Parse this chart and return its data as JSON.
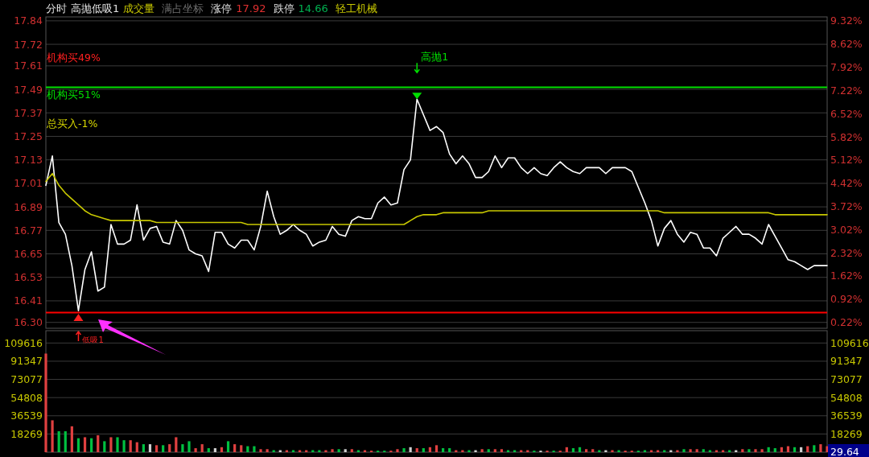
{
  "chart_data": [
    {
      "type": "line",
      "categories": [
        null,
        null,
        null,
        null,
        null,
        null,
        null,
        null,
        null,
        null,
        null,
        null,
        null,
        null,
        null,
        null,
        null,
        null,
        null,
        null,
        null,
        null,
        null,
        null,
        null,
        null,
        null,
        null,
        null,
        null,
        null,
        null,
        null,
        null,
        null,
        null,
        null,
        null,
        null,
        null,
        null,
        null,
        null,
        null,
        null,
        null,
        null,
        null,
        null,
        null,
        null,
        null,
        null,
        null,
        null,
        null,
        null,
        null,
        null,
        null,
        null,
        null,
        null,
        null,
        null,
        null,
        null,
        null,
        null,
        null,
        null,
        null,
        null,
        null,
        null,
        null,
        null,
        null,
        null,
        null,
        null,
        null,
        null,
        null,
        null,
        null,
        null,
        null,
        null,
        null,
        null,
        null,
        null,
        null,
        null,
        null,
        null,
        null,
        null,
        null,
        null,
        null,
        null,
        null,
        null,
        null,
        null,
        null,
        null,
        null,
        null,
        null,
        null,
        null,
        null,
        null,
        null,
        null,
        null,
        null,
        null
      ],
      "series": [
        {
          "color": "#ffffff",
          "values": [
            17.0,
            17.15,
            16.81,
            16.75,
            16.59,
            16.36,
            16.57,
            16.66,
            16.46,
            16.48,
            16.8,
            16.7,
            16.7,
            16.72,
            16.9,
            16.72,
            16.78,
            16.79,
            16.71,
            16.7,
            16.82,
            16.77,
            16.67,
            16.65,
            16.64,
            16.56,
            16.76,
            16.76,
            16.7,
            16.68,
            16.72,
            16.72,
            16.67,
            16.79,
            16.97,
            16.84,
            16.75,
            16.77,
            16.8,
            16.77,
            16.75,
            16.69,
            16.71,
            16.72,
            16.79,
            16.75,
            16.74,
            16.82,
            16.84,
            16.83,
            16.83,
            16.91,
            16.94,
            16.9,
            16.91,
            17.08,
            17.13,
            17.44,
            17.36,
            17.28,
            17.3,
            17.27,
            17.16,
            17.11,
            17.15,
            17.11,
            17.04,
            17.04,
            17.07,
            17.15,
            17.09,
            17.14,
            17.14,
            17.09,
            17.06,
            17.09,
            17.06,
            17.05,
            17.09,
            17.12,
            17.09,
            17.07,
            17.06,
            17.09,
            17.09,
            17.09,
            17.06,
            17.09,
            17.09,
            17.09,
            17.07,
            16.99,
            16.91,
            16.82,
            16.69,
            16.78,
            16.82,
            16.75,
            16.71,
            16.76,
            16.75,
            16.68,
            16.68,
            16.64,
            16.73,
            16.76,
            16.79,
            16.75,
            16.75,
            16.73,
            16.7,
            16.8,
            16.74,
            16.68,
            16.62,
            16.61,
            16.59,
            16.57,
            16.59,
            16.59,
            16.59
          ]
        },
        {
          "color": "#c8c800",
          "values": [
            17.02,
            17.06,
            17.0,
            16.96,
            16.93,
            16.9,
            16.87,
            16.85,
            16.84,
            16.83,
            16.82,
            16.82,
            16.82,
            16.82,
            16.82,
            16.82,
            16.82,
            16.81,
            16.81,
            16.81,
            16.81,
            16.81,
            16.81,
            16.81,
            16.81,
            16.81,
            16.81,
            16.81,
            16.81,
            16.81,
            16.81,
            16.8,
            16.8,
            16.8,
            16.8,
            16.8,
            16.8,
            16.8,
            16.8,
            16.8,
            16.8,
            16.8,
            16.8,
            16.8,
            16.8,
            16.8,
            16.8,
            16.8,
            16.8,
            16.8,
            16.8,
            16.8,
            16.8,
            16.8,
            16.8,
            16.8,
            16.82,
            16.84,
            16.85,
            16.85,
            16.85,
            16.86,
            16.86,
            16.86,
            16.86,
            16.86,
            16.86,
            16.86,
            16.87,
            16.87,
            16.87,
            16.87,
            16.87,
            16.87,
            16.87,
            16.87,
            16.87,
            16.87,
            16.87,
            16.87,
            16.87,
            16.87,
            16.87,
            16.87,
            16.87,
            16.87,
            16.87,
            16.87,
            16.87,
            16.87,
            16.87,
            16.87,
            16.87,
            16.87,
            16.87,
            16.86,
            16.86,
            16.86,
            16.86,
            16.86,
            16.86,
            16.86,
            16.86,
            16.86,
            16.86,
            16.86,
            16.86,
            16.86,
            16.86,
            16.86,
            16.86,
            16.86,
            16.85,
            16.85,
            16.85,
            16.85,
            16.85,
            16.85,
            16.85,
            16.85,
            16.85
          ]
        }
      ],
      "ylim": [
        16.27,
        17.86
      ],
      "yticks": [
        {
          "value": 16.3,
          "label": "16.30"
        },
        16.41,
        16.53,
        16.65,
        16.77,
        16.89,
        17.01,
        17.13,
        17.25,
        17.37,
        17.49,
        17.61,
        17.72,
        17.84
      ],
      "y2lim": [
        0.04,
        9.44
      ],
      "y2ticks": [
        {
          "value": 0.22,
          "label": "0.22%"
        },
        {
          "value": 0.92,
          "label": "0.92%"
        },
        {
          "value": 1.62,
          "label": "1.62%"
        },
        {
          "value": 2.32,
          "label": "2.32%"
        },
        {
          "value": 3.02,
          "label": "3.02%"
        },
        {
          "value": 3.72,
          "label": "3.72%"
        },
        {
          "value": 4.42,
          "label": "4.42%"
        },
        {
          "value": 5.12,
          "label": "5.12%"
        },
        {
          "value": 5.82,
          "label": "5.82%"
        },
        {
          "value": 6.52,
          "label": "6.52%"
        },
        {
          "value": 7.22,
          "label": "7.22%"
        },
        {
          "value": 7.92,
          "label": "7.92%"
        },
        {
          "value": 8.62,
          "label": "8.62%"
        },
        {
          "value": 9.32,
          "label": "9.32%"
        }
      ],
      "grid": "y",
      "ref_lines": [
        {
          "axis": "y",
          "value": 17.5,
          "color": "#00e000"
        },
        {
          "axis": "y",
          "value": 16.35,
          "color": "#ff0000"
        }
      ],
      "annotations": [
        "分时",
        "高抛低吸1",
        "成交量",
        "满占坐标",
        "涨停",
        "17.92",
        "跌停",
        "14.66",
        "轻工机械",
        "机构买49%",
        "机构买51%",
        "总买入-1%",
        "高抛1",
        "低吸1"
      ]
    },
    {
      "type": "bar",
      "categories": [
        null,
        null,
        null,
        null,
        null,
        null,
        null,
        null,
        null,
        null,
        null,
        null,
        null,
        null,
        null,
        null,
        null,
        null,
        null,
        null,
        null,
        null,
        null,
        null,
        null,
        null,
        null,
        null,
        null,
        null,
        null,
        null,
        null,
        null,
        null,
        null,
        null,
        null,
        null,
        null,
        null,
        null,
        null,
        null,
        null,
        null,
        null,
        null,
        null,
        null,
        null,
        null,
        null,
        null,
        null,
        null,
        null,
        null,
        null,
        null,
        null,
        null,
        null,
        null,
        null,
        null,
        null,
        null,
        null,
        null,
        null,
        null,
        null,
        null,
        null,
        null,
        null,
        null,
        null,
        null,
        null,
        null,
        null,
        null,
        null,
        null,
        null,
        null,
        null,
        null,
        null,
        null,
        null,
        null,
        null,
        null,
        null,
        null,
        null,
        null,
        null,
        null,
        null,
        null,
        null,
        null,
        null,
        null,
        null,
        null,
        null,
        null,
        null,
        null,
        null,
        null,
        null,
        null,
        null,
        null,
        null
      ],
      "values": [
        99000,
        32000,
        21000,
        21000,
        26000,
        14000,
        15000,
        14000,
        17000,
        11000,
        15000,
        15000,
        12000,
        12000,
        10000,
        8000,
        8000,
        7000,
        7000,
        8000,
        15000,
        8000,
        11000,
        4000,
        8000,
        4000,
        4000,
        5000,
        11000,
        8000,
        7000,
        6000,
        6000,
        3000,
        3000,
        2000,
        2000,
        2000,
        2000,
        2000,
        2000,
        2000,
        2000,
        2000,
        3000,
        3000,
        3000,
        3000,
        2000,
        2000,
        1500,
        1500,
        1500,
        1500,
        3000,
        4000,
        5000,
        4000,
        4000,
        5000,
        7000,
        4000,
        4000,
        2000,
        2000,
        2000,
        2000,
        3000,
        3000,
        3000,
        3000,
        2000,
        2000,
        2000,
        2000,
        1500,
        1500,
        1500,
        1500,
        1500,
        5000,
        4000,
        5000,
        3000,
        3000,
        2000,
        2000,
        2000,
        2000,
        1500,
        1500,
        1500,
        2000,
        2000,
        2000,
        2000,
        2000,
        2000,
        3000,
        3000,
        3000,
        3000,
        2000,
        2000,
        2000,
        2000,
        2000,
        3000,
        3000,
        3000,
        3000,
        5000,
        4000,
        5000,
        6000,
        5000,
        5000,
        6000,
        7000,
        8000,
        6000
      ],
      "colors": [
        "#e04040",
        "#e04040",
        "#00c040",
        "#00c040",
        "#e04040",
        "#00c040",
        "#e04040",
        "#00c040",
        "#e04040",
        "#00c040",
        "#e04040",
        "#00c040",
        "#00c040",
        "#e04040",
        "#e04040",
        "#00c040",
        "#d0d0d0",
        "#e04040",
        "#00c040",
        "#e04040",
        "#e04040",
        "#00c040",
        "#00c040",
        "#e04040",
        "#e04040",
        "#00c040",
        "#d0d0d0",
        "#e04040",
        "#00c040",
        "#e04040",
        "#e04040",
        "#00c040",
        "#00c040",
        "#e04040",
        "#e04040",
        "#00c040",
        "#d0d0d0",
        "#e04040",
        "#00c040",
        "#e04040",
        "#e04040",
        "#00c040",
        "#00c040",
        "#e04040",
        "#e04040",
        "#00c040",
        "#d0d0d0",
        "#e04040",
        "#00c040",
        "#e04040",
        "#e04040",
        "#00c040",
        "#00c040",
        "#e04040",
        "#e04040",
        "#00c040",
        "#d0d0d0",
        "#e04040",
        "#00c040",
        "#e04040",
        "#e04040",
        "#00c040",
        "#00c040",
        "#e04040",
        "#e04040",
        "#00c040",
        "#d0d0d0",
        "#e04040",
        "#00c040",
        "#e04040",
        "#e04040",
        "#00c040",
        "#00c040",
        "#e04040",
        "#e04040",
        "#00c040",
        "#d0d0d0",
        "#e04040",
        "#00c040",
        "#e04040",
        "#e04040",
        "#00c040",
        "#00c040",
        "#e04040",
        "#e04040",
        "#00c040",
        "#d0d0d0",
        "#e04040",
        "#00c040",
        "#e04040",
        "#e04040",
        "#00c040",
        "#00c040",
        "#e04040",
        "#e04040",
        "#00c040",
        "#d0d0d0",
        "#e04040",
        "#00c040",
        "#e04040",
        "#e04040",
        "#00c040",
        "#00c040",
        "#e04040",
        "#e04040",
        "#00c040",
        "#d0d0d0",
        "#e04040",
        "#00c040",
        "#e04040",
        "#e04040",
        "#00c040",
        "#00c040",
        "#e04040",
        "#e04040",
        "#00c040",
        "#d0d0d0",
        "#e04040",
        "#00c040",
        "#e04040",
        "#e04040"
      ],
      "ylim": [
        0,
        122000
      ],
      "yticks": [
        18269,
        36539,
        54808,
        73077,
        91347,
        109616
      ],
      "y2lim": [
        0,
        122000
      ],
      "y2ticks": [
        18269,
        36539,
        54808,
        73077,
        91347,
        109616
      ],
      "grid": "y",
      "annotations": [
        "29.64"
      ]
    }
  ]
}
